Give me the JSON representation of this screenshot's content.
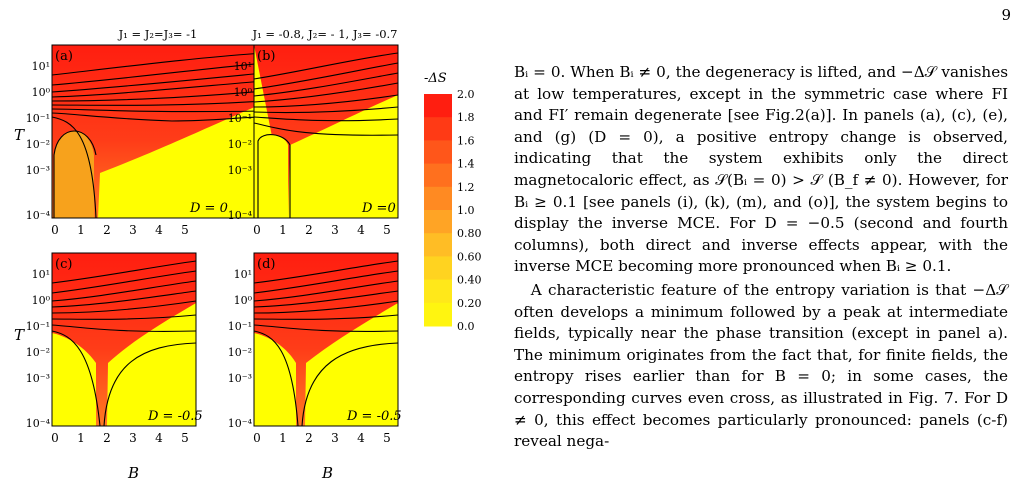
{
  "page_number": "9",
  "figure": {
    "panel_titles": [
      "J₁ = J₂=J₃= -1",
      "J₁ = -0.8, J₂= - 1, J₃= -0.7"
    ],
    "panel_letters": [
      "(a)",
      "(b)",
      "(c)",
      "(d)"
    ],
    "panel_d_labels": [
      "D = 0",
      "D =0",
      "D = -0.5",
      "D = -0.5"
    ],
    "y_axis_label": "T",
    "x_axis_label": "B",
    "y_ticks": [
      "10¹",
      "10⁰",
      "10⁻¹",
      "10⁻²",
      "10⁻³",
      "10⁻⁴"
    ],
    "x_ticks": [
      "0",
      "1",
      "2",
      "3",
      "4",
      "5"
    ],
    "colorbar_title": "-ΔS",
    "colorbar_ticks": [
      "2.0",
      "1.8",
      "1.6",
      "1.4",
      "1.2",
      "1.0",
      "0.80",
      "0.60",
      "0.40",
      "0.20",
      "0.0"
    ],
    "colors": {
      "hot": "#ff2a1a",
      "orange": "#f7a21c",
      "yellow": "#ffff00",
      "contour": "#000000"
    },
    "colorbar_colors": [
      "#ff1e10",
      "#ff3a15",
      "#ff561a",
      "#ff701e",
      "#ff8a22",
      "#ffa425",
      "#ffbd25",
      "#ffd320",
      "#ffe81a",
      "#fff510"
    ]
  },
  "body": {
    "p1": "Bᵢ = 0. When Bᵢ ≠ 0, the degeneracy is lifted, and −Δ𝒮 vanishes at low temperatures, except in the symmetric case where FI and FI′ remain degenerate [see Fig.2(a)]. In panels (a), (c), (e), and (g) (D = 0), a positive entropy change is observed, indicating that the system exhibits only the direct magnetocaloric effect, as 𝒮(Bᵢ = 0) > 𝒮 (B_f ≠ 0). However, for Bᵢ ≥ 0.1 [see panels (i), (k), (m), and (o)], the system begins to display the inverse MCE. For D = −0.5 (second and fourth columns), both direct and inverse effects appear, with the inverse MCE becoming more pronounced when Bᵢ ≥ 0.1.",
    "p2": "A characteristic feature of the entropy variation is that −Δ𝒮 often develops a minimum followed by a peak at intermediate fields, typically near the phase transition (except in panel a). The minimum originates from the fact that, for finite fields, the entropy rises earlier than for B = 0; in some cases, the corresponding curves even cross, as illustrated in Fig. 7. For D ≠ 0, this effect becomes particularly pronounced: panels (c-f) reveal nega-"
  }
}
